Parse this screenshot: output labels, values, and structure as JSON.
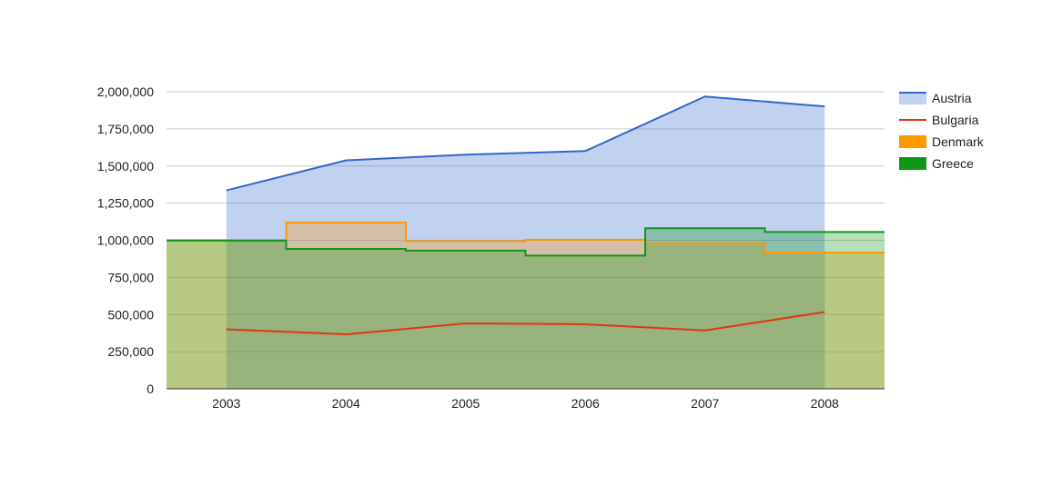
{
  "chart_data": {
    "type": "combo",
    "title": "",
    "xlabel": "",
    "ylabel": "",
    "categories": [
      "2003",
      "2004",
      "2005",
      "2006",
      "2007",
      "2008"
    ],
    "ylim": [
      0,
      2000000
    ],
    "yticks": [
      0,
      250000,
      500000,
      750000,
      1000000,
      1250000,
      1500000,
      1750000,
      2000000
    ],
    "ytick_labels": [
      "0",
      "250,000",
      "500,000",
      "750,000",
      "1,000,000",
      "1,250,000",
      "1,500,000",
      "1,750,000",
      "2,000,000"
    ],
    "grid": true,
    "legend_position": "right",
    "series": [
      {
        "name": "Austria",
        "type": "area",
        "color": "#3366cc",
        "values": [
          1336060,
          1538156,
          1576579,
          1600652,
          1968113,
          1901067
        ]
      },
      {
        "name": "Bulgaria",
        "type": "line",
        "color": "#dc3912",
        "values": [
          400361,
          366849,
          440514,
          434552,
          393032,
          517206
        ]
      },
      {
        "name": "Denmark",
        "type": "stepped-area",
        "color": "#ff9900",
        "values": [
          1001582,
          1119450,
          993360,
          1004163,
          979198,
          916965
        ]
      },
      {
        "name": "Greece",
        "type": "stepped-area",
        "color": "#109618",
        "values": [
          997974,
          941795,
          930593,
          897127,
          1080887,
          1056036
        ]
      }
    ]
  }
}
